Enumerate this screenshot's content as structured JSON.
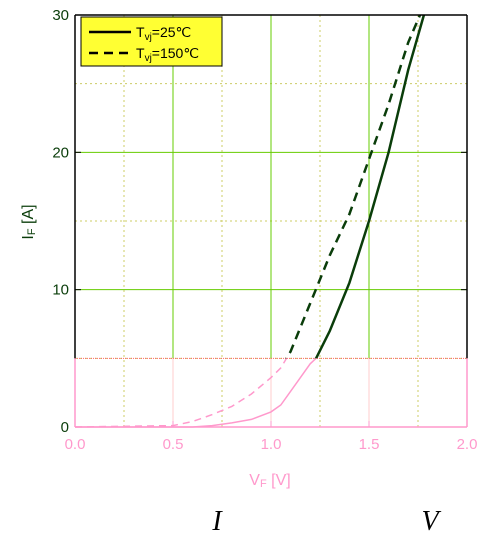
{
  "chart_data": {
    "type": "line",
    "xlabel_main": "V",
    "xlabel_sub": "F",
    "xlabel_unit": " [V]",
    "ylabel_main": "I",
    "ylabel_sub": "F",
    "ylabel_unit": " [A]",
    "xlim": [
      0,
      2.0
    ],
    "ylim": [
      0,
      30
    ],
    "x_ticks": [
      "0.0",
      "0.5",
      "1.0",
      "1.5",
      "2.0"
    ],
    "y_ticks": [
      "0",
      "10",
      "20",
      "30"
    ],
    "x_tick_values": [
      0,
      0.5,
      1.0,
      1.5,
      2.0
    ],
    "y_tick_values": [
      0,
      10,
      20,
      30
    ],
    "grid": true,
    "legend_position": "top-left",
    "series": [
      {
        "name": "Tvj=25℃",
        "name_main": "T",
        "name_sub": "vj",
        "name_rest": "=25℃",
        "style": "solid",
        "color": "#0a3d0a",
        "low_color": "#ff99cc",
        "x": [
          0.0,
          0.6,
          0.7,
          0.8,
          0.9,
          1.0,
          1.05,
          1.1,
          1.15,
          1.2,
          1.23,
          1.3,
          1.4,
          1.5,
          1.6,
          1.7,
          1.78
        ],
        "y": [
          0.0,
          0.0,
          0.1,
          0.3,
          0.55,
          1.1,
          1.6,
          2.6,
          3.6,
          4.6,
          5.0,
          7.0,
          10.5,
          15.0,
          20.0,
          26.0,
          30.0
        ]
      },
      {
        "name": "Tvj=150℃",
        "name_main": "T",
        "name_sub": "vj",
        "name_rest": "=150℃",
        "style": "dashed",
        "color": "#0a3d0a",
        "low_color": "#ff99cc",
        "x": [
          0.0,
          0.5,
          0.6,
          0.7,
          0.8,
          0.9,
          1.0,
          1.05,
          1.1,
          1.2,
          1.3,
          1.4,
          1.5,
          1.6,
          1.7,
          1.76
        ],
        "y": [
          0.0,
          0.1,
          0.4,
          0.9,
          1.5,
          2.4,
          3.6,
          4.3,
          5.5,
          9.0,
          12.5,
          15.5,
          19.5,
          23.5,
          28.0,
          30.0
        ]
      }
    ],
    "highlight_threshold": 5,
    "colors": {
      "upper_grid": "#66cc00",
      "lower_grid": "#ffcccc",
      "minor_grid": "#cccc66",
      "upper_text": "#0a3d0a",
      "lower_text": "#ff99cc",
      "legend_bg": "#ffff33",
      "threshold_line": "#ff6666"
    }
  },
  "captions": {
    "left_letter": "I",
    "right_letter": "V"
  }
}
